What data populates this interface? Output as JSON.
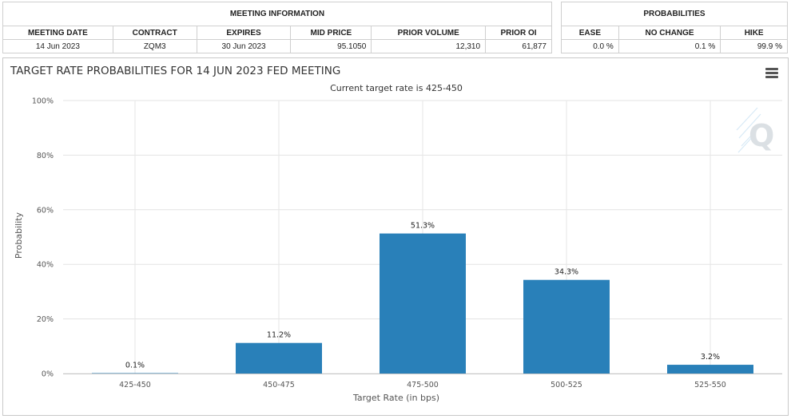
{
  "meeting_info": {
    "header": "MEETING INFORMATION",
    "columns": [
      "MEETING DATE",
      "CONTRACT",
      "EXPIRES",
      "MID PRICE",
      "PRIOR VOLUME",
      "PRIOR OI"
    ],
    "row": [
      "14 Jun 2023",
      "ZQM3",
      "30 Jun 2023",
      "95.1050",
      "12,310",
      "61,877"
    ]
  },
  "probabilities": {
    "header": "PROBABILITIES",
    "columns": [
      "EASE",
      "NO CHANGE",
      "HIKE"
    ],
    "row": [
      "0.0 %",
      "0.1 %",
      "99.9 %"
    ]
  },
  "chart": {
    "menu_icon": "hamburger-menu-icon",
    "watermark_icon": "q-logo-icon"
  },
  "chart_data": {
    "type": "bar",
    "title": "TARGET RATE PROBABILITIES FOR 14 JUN 2023 FED MEETING",
    "subtitle": "Current target rate is 425-450",
    "xlabel": "Target Rate (in bps)",
    "ylabel": "Probability",
    "categories": [
      "425-450",
      "450-475",
      "475-500",
      "500-525",
      "525-550"
    ],
    "values": [
      0.1,
      11.2,
      51.3,
      34.3,
      3.2
    ],
    "data_labels": [
      "0.1%",
      "11.2%",
      "51.3%",
      "34.3%",
      "3.2%"
    ],
    "ylim": [
      0,
      100
    ],
    "yticks": [
      "0%",
      "20%",
      "40%",
      "60%",
      "80%",
      "100%"
    ],
    "bar_color": "#2980b9",
    "grid": true
  }
}
